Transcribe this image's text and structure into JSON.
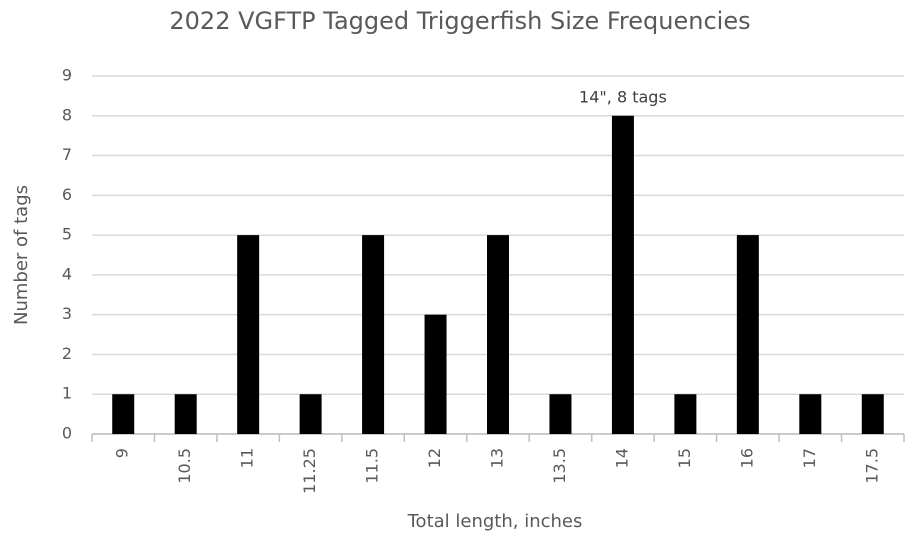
{
  "chart_data": {
    "type": "bar",
    "title": "2022 VGFTP Tagged Triggerfish Size Frequencies",
    "x_label": "Total length, inches",
    "y_label": "Number of tags",
    "categories": [
      "9",
      "10.5",
      "11",
      "11.25",
      "11.5",
      "12",
      "13",
      "13.5",
      "14",
      "15",
      "16",
      "17",
      "17.5"
    ],
    "values": [
      1,
      1,
      5,
      1,
      5,
      3,
      5,
      1,
      8,
      1,
      5,
      1,
      1
    ],
    "color": "#000000",
    "ylim": [
      0,
      9
    ],
    "yticks": [
      0,
      1,
      2,
      3,
      4,
      5,
      6,
      7,
      8,
      9
    ],
    "grid": true,
    "annotation": "14\", 8 tags"
  }
}
